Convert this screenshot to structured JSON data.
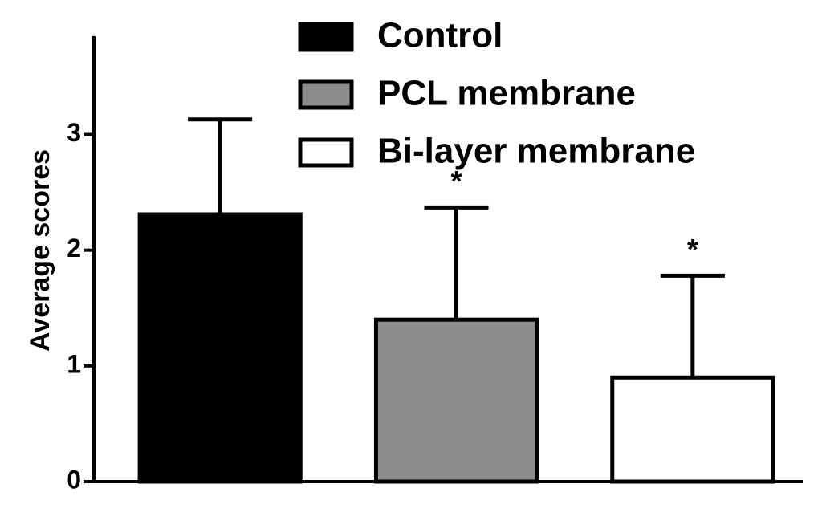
{
  "chart_data": {
    "type": "bar",
    "y_label": "Average scores",
    "categories": [
      null
    ],
    "series": [
      {
        "name": "Control",
        "color": "#000000",
        "values": [
          2.31
        ],
        "errors": [
          0.82
        ]
      },
      {
        "name": "PCL membrane",
        "color": "#8c8c8c",
        "values": [
          1.4
        ],
        "errors": [
          0.97
        ],
        "annotation": "*"
      },
      {
        "name": "Bi-layer membrane",
        "color": "#ffffff",
        "values": [
          0.9
        ],
        "errors": [
          0.88
        ],
        "annotation": "*"
      }
    ],
    "ylim": [
      0,
      3.85
    ],
    "yticks": [
      0,
      1,
      2,
      3
    ],
    "grid": false,
    "legend": "top-right"
  }
}
